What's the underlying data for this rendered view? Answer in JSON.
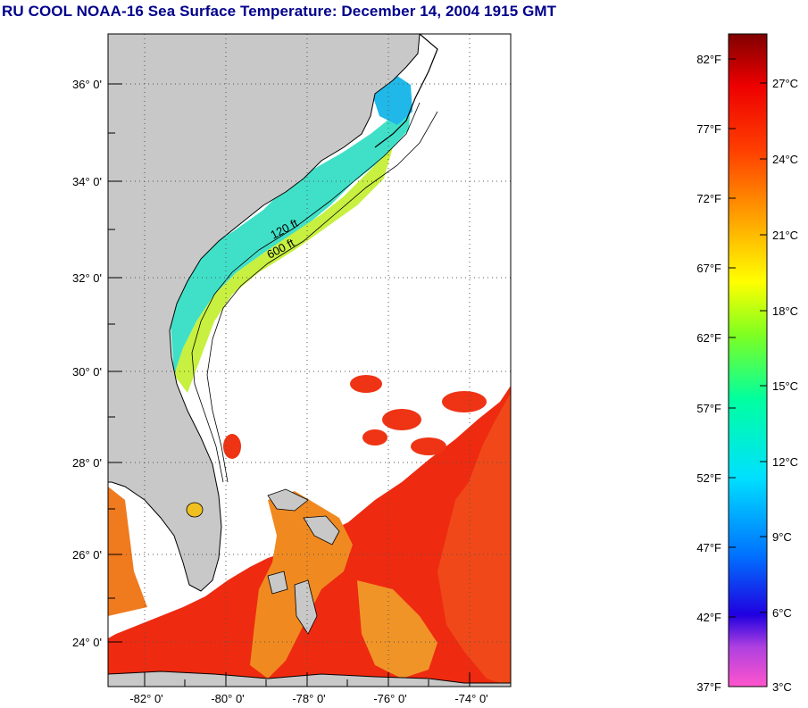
{
  "title": "RU COOL  NOAA-16  Sea Surface Temperature:  December 14, 2004 1915 GMT",
  "map": {
    "lat_labels": [
      "36° 0'",
      "34° 0'",
      "32° 0'",
      "30° 0'",
      "28° 0'",
      "26° 0'",
      "24° 0'"
    ],
    "lon_labels": [
      "-82° 0'",
      "-80° 0'",
      "-78° 0'",
      "-76° 0'",
      "-74° 0'"
    ],
    "isobath_labels": [
      "120 ft",
      "600 ft"
    ],
    "colors": {
      "land": "#c8c8c8",
      "gulf_stream": "#ee2a10",
      "cold_shelf": "#22d8e8"
    }
  },
  "colorbar": {
    "fahrenheit": [
      "82°F",
      "77°F",
      "72°F",
      "67°F",
      "62°F",
      "57°F",
      "52°F",
      "47°F",
      "42°F",
      "37°F"
    ],
    "celsius": [
      "27°C",
      "24°C",
      "21°C",
      "18°C",
      "15°C",
      "12°C",
      "9°C",
      "6°C",
      "3°C"
    ]
  }
}
